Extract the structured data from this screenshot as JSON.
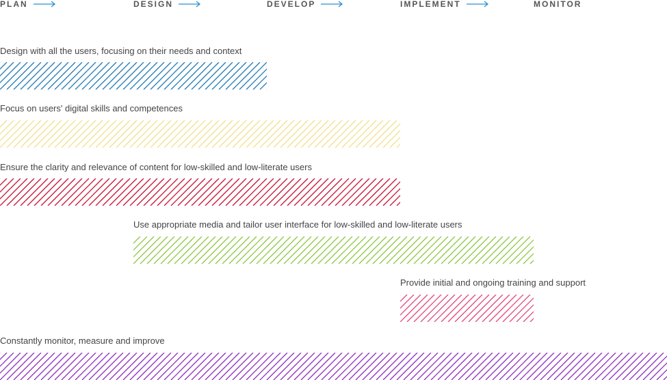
{
  "phases": [
    {
      "label": "PLAN",
      "has_arrow": true
    },
    {
      "label": "DESIGN",
      "has_arrow": true
    },
    {
      "label": "DEVELOP",
      "has_arrow": true
    },
    {
      "label": "IMPLEMENT",
      "has_arrow": true
    },
    {
      "label": "MONITOR",
      "has_arrow": false
    }
  ],
  "colors": {
    "arrow": "#2a8fd0",
    "row1": "#1f78b4",
    "row2": "#f3df8c",
    "row3": "#c8102e",
    "row4": "#8cc63f",
    "row5": "#e0457b",
    "row6": "#8e2dbf"
  },
  "rows": [
    {
      "label": "Design with all the users, focusing on their needs and context",
      "start_phase": "PLAN",
      "end_phase": "DESIGN"
    },
    {
      "label": "Focus on users' digital skills and competences",
      "start_phase": "PLAN",
      "end_phase": "DEVELOP"
    },
    {
      "label": "Ensure the clarity and relevance of content for low-skilled and low-literate users",
      "start_phase": "PLAN",
      "end_phase": "DEVELOP"
    },
    {
      "label": "Use appropriate media and tailor user interface for low-skilled and low-literate users",
      "start_phase": "DESIGN",
      "end_phase": "IMPLEMENT"
    },
    {
      "label": "Provide initial and ongoing training and support",
      "start_phase": "IMPLEMENT",
      "end_phase": "IMPLEMENT"
    },
    {
      "label": "Constantly monitor, measure and improve",
      "start_phase": "PLAN",
      "end_phase": "MONITOR"
    }
  ]
}
